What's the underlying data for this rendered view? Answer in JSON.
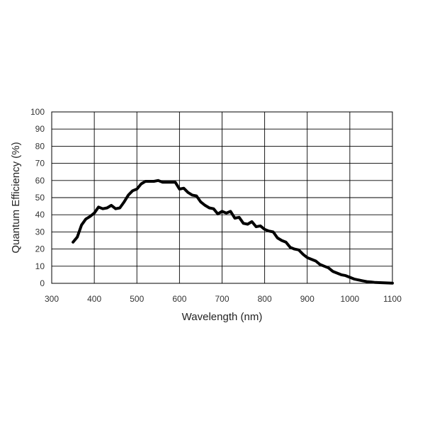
{
  "chart_data": {
    "type": "line",
    "xlabel": "Wavelength (nm)",
    "ylabel": "Quantum Efficiency (%)",
    "xlim": [
      300,
      1100
    ],
    "ylim": [
      0,
      100
    ],
    "xticks": [
      300,
      400,
      500,
      600,
      700,
      800,
      900,
      1000,
      1100
    ],
    "yticks": [
      0,
      10,
      20,
      30,
      40,
      50,
      60,
      70,
      80,
      90,
      100
    ],
    "grid": true,
    "series": [
      {
        "color": "#000000",
        "x": [
          350,
          360,
          370,
          380,
          390,
          400,
          410,
          420,
          430,
          440,
          450,
          460,
          470,
          480,
          490,
          500,
          510,
          520,
          530,
          540,
          550,
          560,
          570,
          580,
          590,
          600,
          610,
          620,
          630,
          640,
          650,
          660,
          670,
          680,
          690,
          700,
          710,
          720,
          730,
          740,
          750,
          760,
          770,
          780,
          790,
          800,
          810,
          820,
          830,
          840,
          850,
          860,
          870,
          880,
          890,
          900,
          910,
          920,
          930,
          940,
          950,
          960,
          970,
          980,
          990,
          1000,
          1010,
          1020,
          1030,
          1040,
          1050,
          1060,
          1070,
          1080,
          1090,
          1100
        ],
        "y": [
          24,
          27,
          34,
          37.5,
          39,
          41,
          44.5,
          43.5,
          44,
          45.5,
          43.5,
          44,
          47.5,
          51.5,
          54,
          55,
          58,
          59.5,
          59.5,
          59.5,
          60,
          59,
          59,
          59,
          59,
          55,
          55.5,
          53,
          51.5,
          51,
          47.5,
          45.5,
          44,
          43.5,
          40.5,
          42,
          41,
          42,
          38,
          38.5,
          35,
          34.5,
          36,
          33,
          33.5,
          31.5,
          30.5,
          30,
          26.5,
          25,
          24,
          21,
          20,
          19.5,
          17,
          15,
          14,
          13,
          11,
          10,
          9,
          7,
          6,
          5,
          4.5,
          3.5,
          2.5,
          2,
          1.5,
          1,
          0.8,
          0.5,
          0.4,
          0.3,
          0.2,
          0.1
        ]
      }
    ]
  }
}
